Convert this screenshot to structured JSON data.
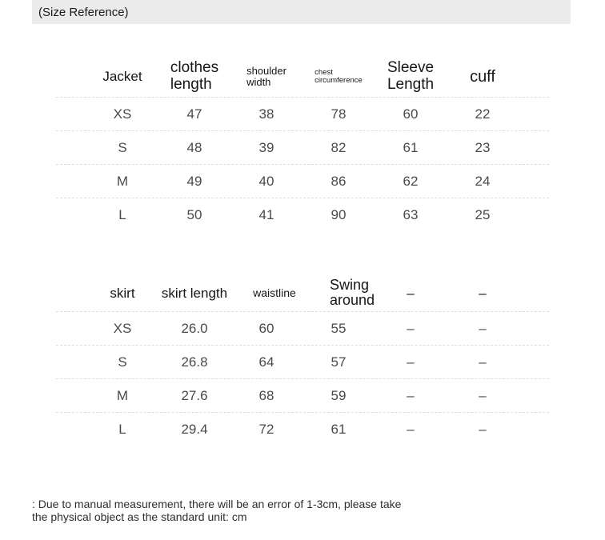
{
  "header": {
    "title": "(Size Reference)"
  },
  "jacket_table": {
    "columns": [
      "Jacket",
      "clothes\nlength",
      "shoulder\nwidth",
      "chest\ncircumference",
      "Sleeve\nLength",
      "cuff"
    ],
    "rows": [
      [
        "XS",
        "47",
        "38",
        "78",
        "60",
        "22"
      ],
      [
        "S",
        "48",
        "39",
        "82",
        "61",
        "23"
      ],
      [
        "M",
        "49",
        "40",
        "86",
        "62",
        "24"
      ],
      [
        "L",
        "50",
        "41",
        "90",
        "63",
        "25"
      ]
    ]
  },
  "skirt_table": {
    "columns": [
      "skirt",
      "skirt length",
      "waistline",
      "Swing around",
      "–",
      "–"
    ],
    "rows": [
      [
        "XS",
        "26.0",
        "60",
        "55",
        "–",
        "–"
      ],
      [
        "S",
        "26.8",
        "64",
        "57",
        "–",
        "–"
      ],
      [
        "M",
        "27.6",
        "68",
        "59",
        "–",
        "–"
      ],
      [
        "L",
        "29.4",
        "72",
        "61",
        "–",
        "–"
      ]
    ]
  },
  "footnote": {
    "line1": ": Due to manual measurement, there will be an error of 1-3cm, please take",
    "line2": "the physical object as the standard unit: cm"
  },
  "colors": {
    "title_bar_bg": "#ebebeb",
    "header_text": "#161616",
    "data_text": "#4a4a4a",
    "separator": "#dddddd"
  }
}
